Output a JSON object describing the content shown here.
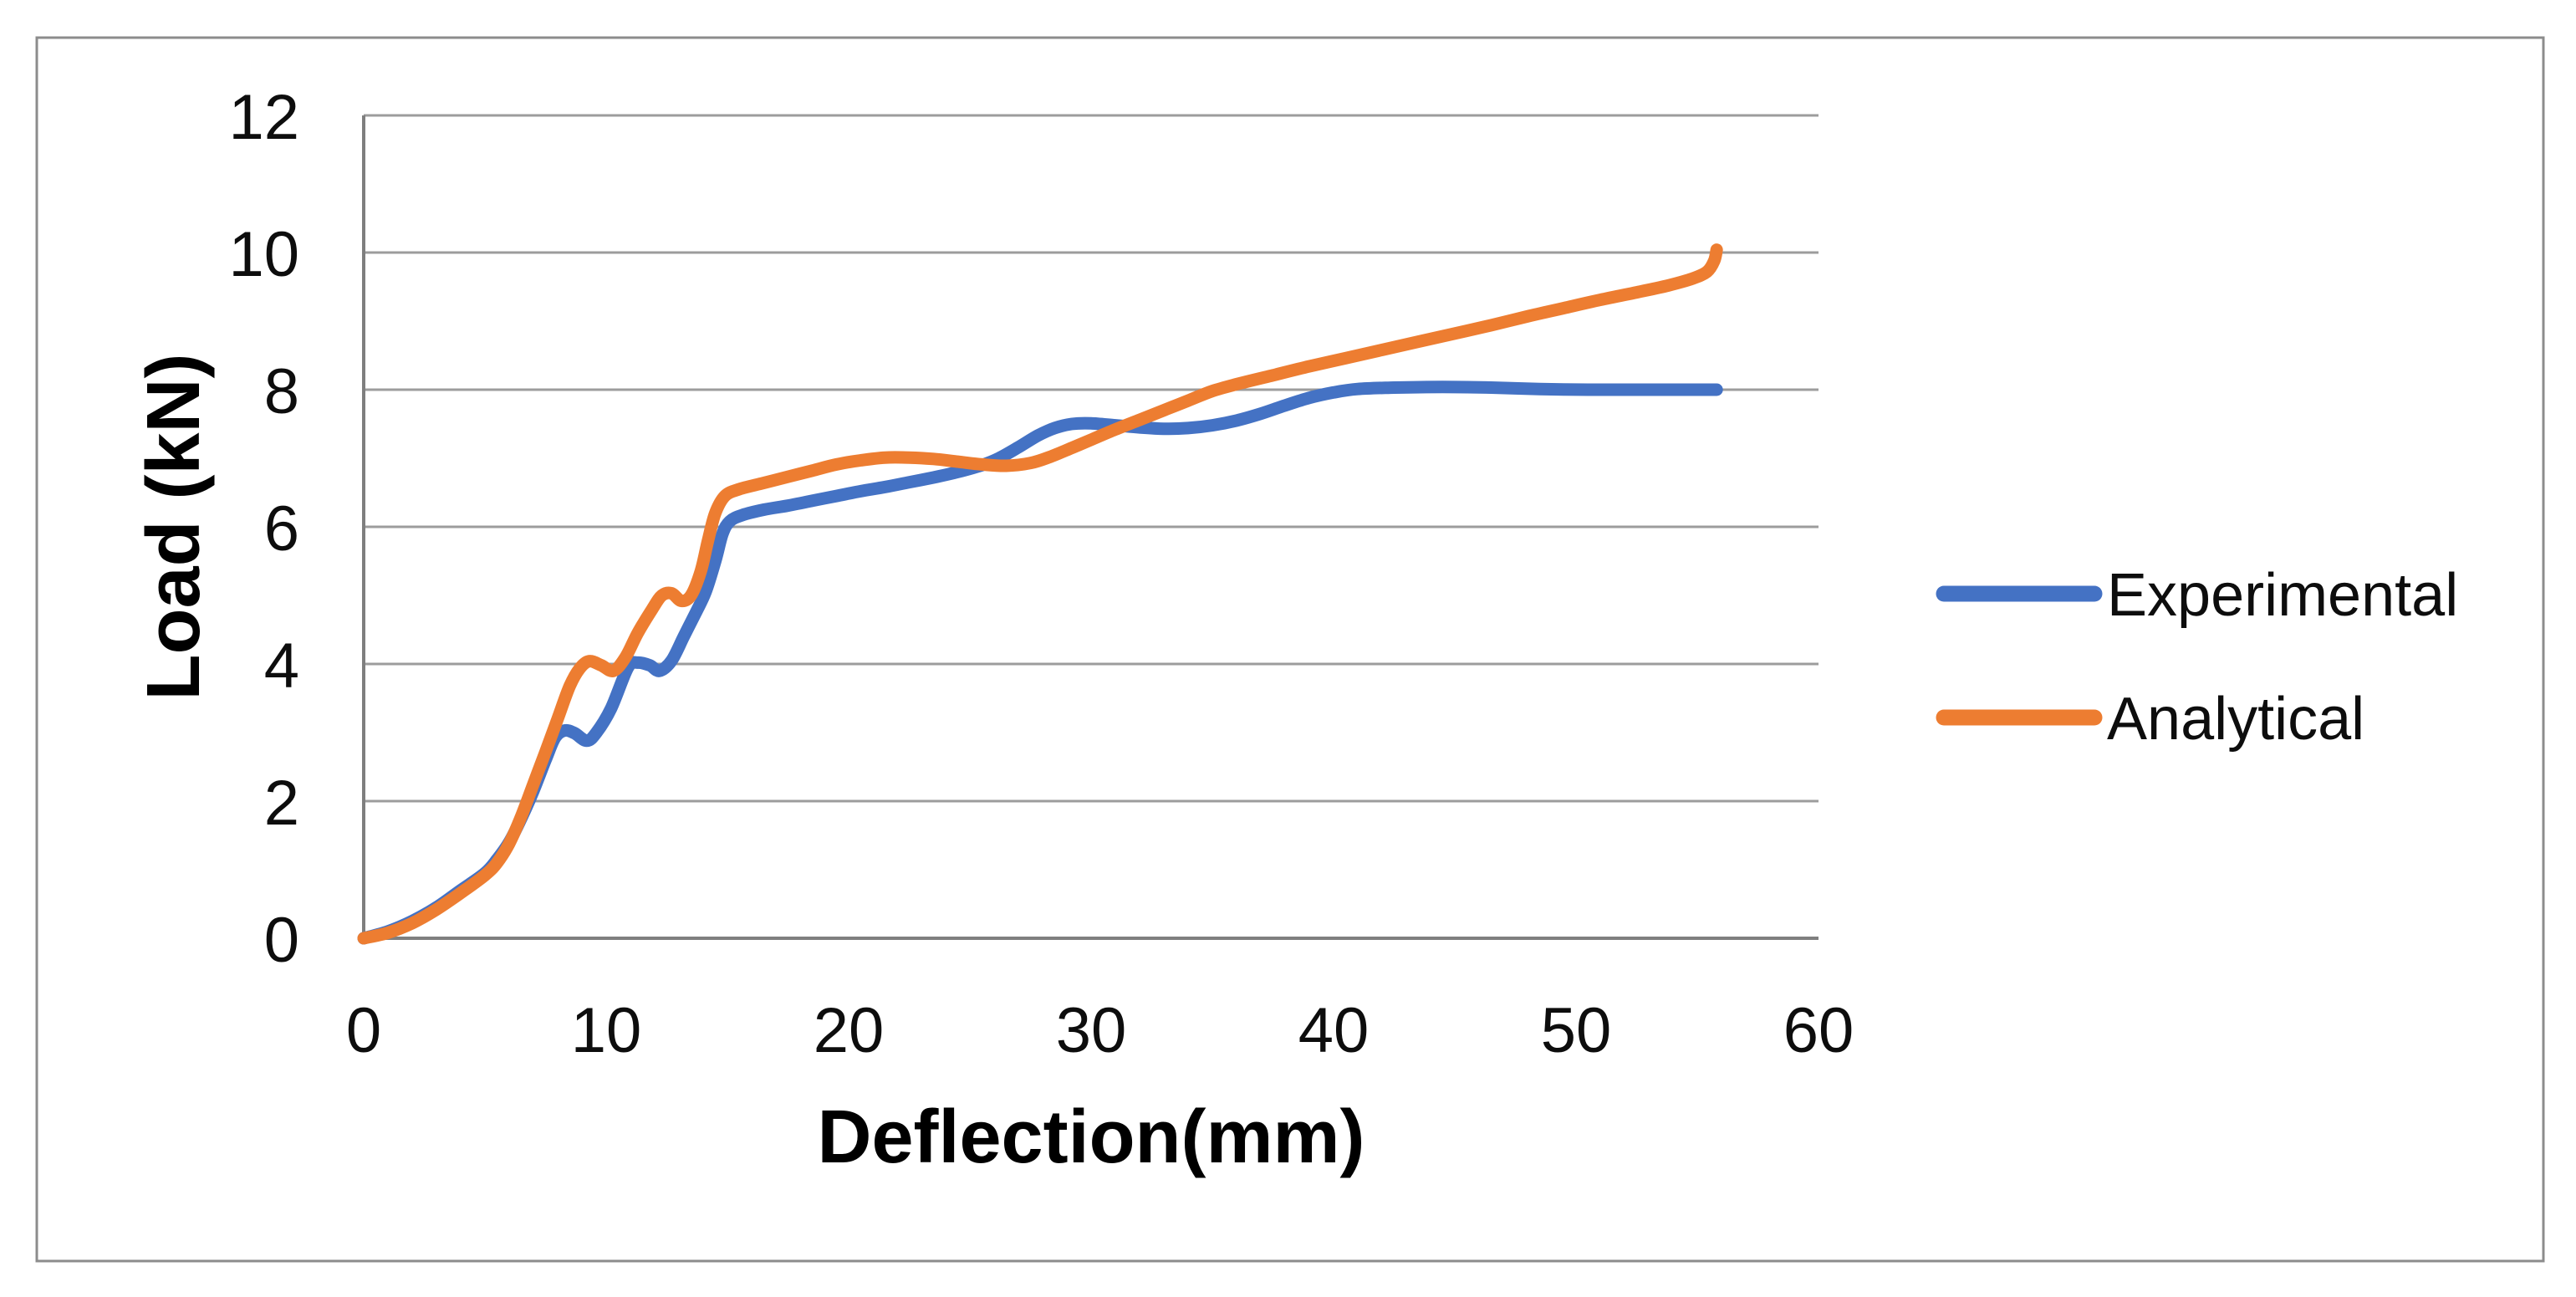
{
  "chart_data": {
    "type": "line",
    "title": "",
    "xlabel": "Deflection(mm)",
    "ylabel": "Load (kN)",
    "xlim": [
      0,
      60
    ],
    "ylim": [
      0,
      12
    ],
    "x_ticks": [
      0,
      10,
      20,
      30,
      40,
      50,
      60
    ],
    "y_ticks": [
      0,
      2,
      4,
      6,
      8,
      10,
      12
    ],
    "x_tick_labels": [
      "0",
      "10",
      "20",
      "30",
      "40",
      "50",
      "60"
    ],
    "y_tick_labels": [
      "0",
      "2",
      "4",
      "6",
      "8",
      "10",
      "12"
    ],
    "grid": "horizontal",
    "legend_position": "right",
    "background_color": "#FFFFFF",
    "border_color": "#8C8C8C",
    "gridline_color": "#9C9C9C",
    "axis_color": "#7F7F7F",
    "series": [
      {
        "name": "Experimental",
        "color": "#4472C4",
        "points": [
          [
            0,
            0
          ],
          [
            1,
            0.1
          ],
          [
            2,
            0.25
          ],
          [
            3,
            0.45
          ],
          [
            4,
            0.7
          ],
          [
            5,
            0.95
          ],
          [
            5.5,
            1.15
          ],
          [
            6,
            1.4
          ],
          [
            6.5,
            1.75
          ],
          [
            7,
            2.15
          ],
          [
            7.5,
            2.6
          ],
          [
            7.9,
            2.93
          ],
          [
            8.3,
            3.03
          ],
          [
            8.7,
            2.99
          ],
          [
            9.2,
            2.88
          ],
          [
            9.6,
            3.0
          ],
          [
            10.2,
            3.35
          ],
          [
            10.9,
            3.95
          ],
          [
            11.3,
            4.02
          ],
          [
            11.8,
            3.98
          ],
          [
            12.2,
            3.9
          ],
          [
            12.7,
            4.05
          ],
          [
            13.2,
            4.4
          ],
          [
            13.7,
            4.75
          ],
          [
            14.1,
            5.05
          ],
          [
            14.5,
            5.5
          ],
          [
            14.8,
            5.9
          ],
          [
            15.1,
            6.08
          ],
          [
            15.6,
            6.17
          ],
          [
            16.5,
            6.25
          ],
          [
            17.5,
            6.31
          ],
          [
            18.5,
            6.38
          ],
          [
            19.5,
            6.45
          ],
          [
            20.5,
            6.52
          ],
          [
            21.5,
            6.58
          ],
          [
            22.5,
            6.65
          ],
          [
            23.5,
            6.72
          ],
          [
            24.5,
            6.8
          ],
          [
            25.5,
            6.9
          ],
          [
            26.2,
            7.0
          ],
          [
            27,
            7.16
          ],
          [
            27.8,
            7.33
          ],
          [
            28.5,
            7.44
          ],
          [
            29.2,
            7.5
          ],
          [
            30,
            7.51
          ],
          [
            31,
            7.48
          ],
          [
            32,
            7.45
          ],
          [
            33,
            7.43
          ],
          [
            34,
            7.44
          ],
          [
            35,
            7.48
          ],
          [
            36,
            7.55
          ],
          [
            37,
            7.65
          ],
          [
            38,
            7.77
          ],
          [
            39,
            7.88
          ],
          [
            40,
            7.96
          ],
          [
            41,
            8.01
          ],
          [
            42.5,
            8.03
          ],
          [
            44.5,
            8.04
          ],
          [
            46.5,
            8.03
          ],
          [
            48.5,
            8.01
          ],
          [
            50.5,
            8.0
          ],
          [
            52.5,
            8.0
          ],
          [
            54.5,
            8.0
          ],
          [
            55.8,
            8.0
          ]
        ]
      },
      {
        "name": "Analytical",
        "color": "#ED7D31",
        "points": [
          [
            0,
            0
          ],
          [
            1,
            0.08
          ],
          [
            2,
            0.22
          ],
          [
            3,
            0.42
          ],
          [
            4,
            0.66
          ],
          [
            5,
            0.92
          ],
          [
            5.5,
            1.1
          ],
          [
            6,
            1.38
          ],
          [
            6.5,
            1.78
          ],
          [
            7,
            2.25
          ],
          [
            7.5,
            2.72
          ],
          [
            8,
            3.2
          ],
          [
            8.5,
            3.68
          ],
          [
            8.9,
            3.93
          ],
          [
            9.3,
            4.04
          ],
          [
            9.8,
            3.98
          ],
          [
            10.3,
            3.9
          ],
          [
            10.8,
            4.1
          ],
          [
            11.3,
            4.45
          ],
          [
            11.9,
            4.8
          ],
          [
            12.3,
            5.0
          ],
          [
            12.7,
            5.03
          ],
          [
            13.1,
            4.92
          ],
          [
            13.5,
            5.0
          ],
          [
            13.9,
            5.35
          ],
          [
            14.2,
            5.8
          ],
          [
            14.5,
            6.2
          ],
          [
            14.9,
            6.45
          ],
          [
            15.5,
            6.55
          ],
          [
            16.5,
            6.64
          ],
          [
            17.5,
            6.73
          ],
          [
            18.5,
            6.82
          ],
          [
            19.5,
            6.91
          ],
          [
            20.5,
            6.97
          ],
          [
            21.5,
            7.01
          ],
          [
            22.5,
            7.01
          ],
          [
            23.5,
            6.99
          ],
          [
            24.5,
            6.95
          ],
          [
            25.5,
            6.91
          ],
          [
            26.5,
            6.89
          ],
          [
            27.5,
            6.93
          ],
          [
            28.3,
            7.02
          ],
          [
            29.2,
            7.15
          ],
          [
            30,
            7.27
          ],
          [
            31,
            7.42
          ],
          [
            32,
            7.56
          ],
          [
            33,
            7.7
          ],
          [
            34,
            7.84
          ],
          [
            35,
            7.98
          ],
          [
            36,
            8.08
          ],
          [
            37.5,
            8.21
          ],
          [
            39,
            8.34
          ],
          [
            40.5,
            8.46
          ],
          [
            42,
            8.58
          ],
          [
            43.5,
            8.7
          ],
          [
            45,
            8.82
          ],
          [
            46.5,
            8.94
          ],
          [
            48,
            9.07
          ],
          [
            49.5,
            9.19
          ],
          [
            51,
            9.31
          ],
          [
            52.5,
            9.42
          ],
          [
            53.8,
            9.52
          ],
          [
            54.8,
            9.62
          ],
          [
            55.4,
            9.72
          ],
          [
            55.7,
            9.88
          ],
          [
            55.8,
            10.04
          ]
        ]
      }
    ]
  },
  "legend": {
    "items": [
      {
        "label": "Experimental",
        "color": "#4472C4"
      },
      {
        "label": "Analytical",
        "color": "#ED7D31"
      }
    ]
  }
}
